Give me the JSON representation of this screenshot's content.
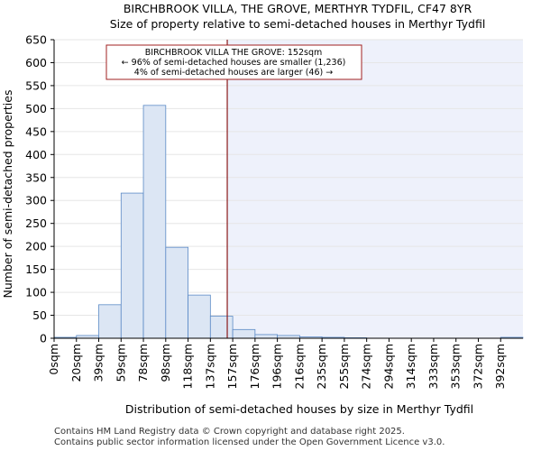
{
  "chart_data": {
    "type": "bar",
    "title": "BIRCHBROOK VILLA, THE GROVE, MERTHYR TYDFIL, CF47 8YR",
    "subtitle": "Size of property relative to semi-detached houses in Merthyr Tydfil",
    "xlabel": "Distribution of semi-detached houses by size in Merthyr Tydfil",
    "ylabel": "Number of semi-detached properties",
    "ylim": [
      0,
      650
    ],
    "yticks": [
      0,
      50,
      100,
      150,
      200,
      250,
      300,
      350,
      400,
      450,
      500,
      550,
      600,
      650
    ],
    "categories": [
      "0sqm",
      "20sqm",
      "39sqm",
      "59sqm",
      "78sqm",
      "98sqm",
      "118sqm",
      "137sqm",
      "157sqm",
      "176sqm",
      "196sqm",
      "216sqm",
      "235sqm",
      "255sqm",
      "274sqm",
      "294sqm",
      "314sqm",
      "333sqm",
      "353sqm",
      "372sqm",
      "392sqm"
    ],
    "values": [
      2,
      6,
      73,
      316,
      507,
      198,
      94,
      48,
      19,
      8,
      6,
      3,
      2,
      1,
      0,
      0,
      0,
      0,
      0,
      0,
      2
    ],
    "property_value": 152,
    "annotation": {
      "line1": "BIRCHBROOK VILLA THE GROVE: 152sqm",
      "line2": "← 96% of semi-detached houses are smaller (1,236)",
      "line3": "4% of semi-detached houses are larger (46) →"
    },
    "colors": {
      "bar_fill": "#dce6f4",
      "bar_stroke": "#5b8ac6",
      "highlight_bg": "#eef1fb",
      "marker_line": "#8b1a1a",
      "annotation_border": "#a02020",
      "axis": "#000000"
    }
  },
  "footer": {
    "line1": "Contains HM Land Registry data © Crown copyright and database right 2025.",
    "line2": "Contains public sector information licensed under the Open Government Licence v3.0."
  }
}
